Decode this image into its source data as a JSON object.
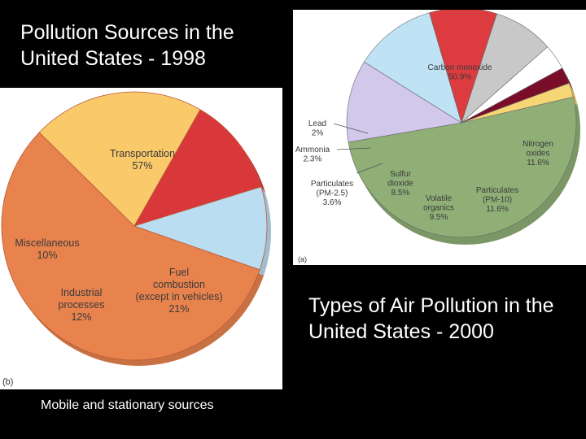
{
  "slide": {
    "title_1998": "Pollution Sources in the United States - 1998",
    "title_2000": "Types of Air Pollution in the United States - 2000",
    "caption": "Mobile and stationary sources"
  },
  "chart_data": [
    {
      "type": "pie",
      "panel_label": "(b)",
      "slices": [
        {
          "label": [
            "Transportation",
            "57%"
          ],
          "value": 57,
          "color": "#E8834E"
        },
        {
          "label": [
            "Fuel",
            "combustion",
            "(except in vehicles)",
            "21%"
          ],
          "value": 21,
          "color": "#F9C96A"
        },
        {
          "label": [
            "Industrial",
            "processes",
            "12%"
          ],
          "value": 12,
          "color": "#D9383A"
        },
        {
          "label": [
            "Miscellaneous",
            "10%"
          ],
          "value": 10,
          "color": "#BBDDF1"
        }
      ]
    },
    {
      "type": "pie",
      "panel_label": "(a)",
      "slices": [
        {
          "label": [
            "Carbon monoxide",
            "50.9%"
          ],
          "value": 50.9,
          "color": "#8FAF77"
        },
        {
          "label": [
            "Nitrogen",
            "oxides",
            "11.6%"
          ],
          "value": 11.6,
          "color": "#D2C8EC"
        },
        {
          "label": [
            "Particulates",
            "(PM-10)",
            "11.6%"
          ],
          "value": 11.6,
          "color": "#BFE2F5"
        },
        {
          "label": [
            "Volatile",
            "organics",
            "9.5%"
          ],
          "value": 9.5,
          "color": "#DC3C40"
        },
        {
          "label": [
            "Sulfur",
            "dioxide",
            "8.5%"
          ],
          "value": 8.5,
          "color": "#C8C8C8"
        },
        {
          "label": [
            "Particulates",
            "(PM-2.5)",
            "3.6%"
          ],
          "value": 3.6,
          "color": "#FFFFFF"
        },
        {
          "label": [
            "Ammonia",
            "2.3%"
          ],
          "value": 2.3,
          "color": "#7A0E2A"
        },
        {
          "label": [
            "Lead",
            "2%"
          ],
          "value": 2,
          "color": "#F5D574"
        }
      ]
    }
  ]
}
